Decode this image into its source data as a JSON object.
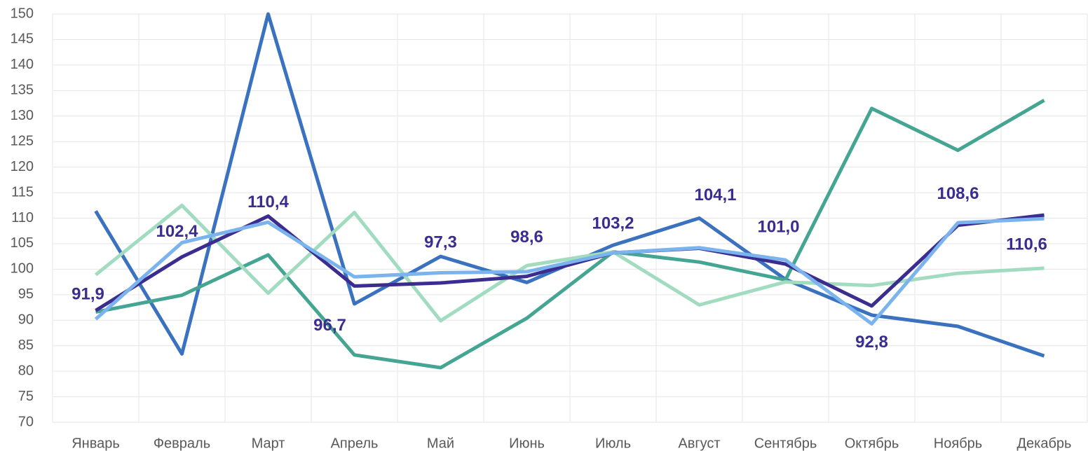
{
  "chart_data": {
    "type": "line",
    "categories": [
      "Январь",
      "Февраль",
      "Март",
      "Апрель",
      "Май",
      "Июнь",
      "Июль",
      "Август",
      "Сентябрь",
      "Октябрь",
      "Ноябрь",
      "Декабрь"
    ],
    "series": [
      {
        "color": "#3a72c0",
        "values": [
          111.4,
          83.4,
          150,
          93.2,
          102.5,
          97.4,
          104.7,
          110,
          98.0,
          91.0,
          88.8,
          83.0
        ]
      },
      {
        "color": "#45a593",
        "values": [
          91.6,
          94.9,
          102.8,
          83.2,
          80.7,
          90.4,
          103.4,
          101.4,
          97.9,
          131.5,
          123.3,
          133.1
        ]
      },
      {
        "color": "#a2dcc0",
        "values": [
          98.9,
          112.5,
          95.3,
          111.1,
          89.9,
          100.7,
          103.4,
          93.0,
          97.5,
          96.8,
          99.2,
          100.2
        ]
      },
      {
        "color": "#3a2d8f",
        "values": [
          91.9,
          102.4,
          110.4,
          96.7,
          97.3,
          98.6,
          103.2,
          104.1,
          101.0,
          92.8,
          108.6,
          110.6
        ],
        "value_labels": [
          "91,9",
          "102,4",
          "110,4",
          "96,7",
          "97,3",
          "98,6",
          "103,2",
          "104,1",
          "101,0",
          "92,8",
          "108,6",
          "110,6"
        ]
      },
      {
        "color": "#7ab3ee",
        "values": [
          90.2,
          105.2,
          109.2,
          98.5,
          99.3,
          99.5,
          103.2,
          104.2,
          101.8,
          89.3,
          109.1,
          109.9
        ]
      }
    ],
    "ylim": [
      70,
      150
    ],
    "yticks": [
      70,
      75,
      80,
      85,
      90,
      95,
      100,
      105,
      110,
      115,
      120,
      125,
      130,
      135,
      140,
      145,
      150
    ],
    "grid": true
  }
}
